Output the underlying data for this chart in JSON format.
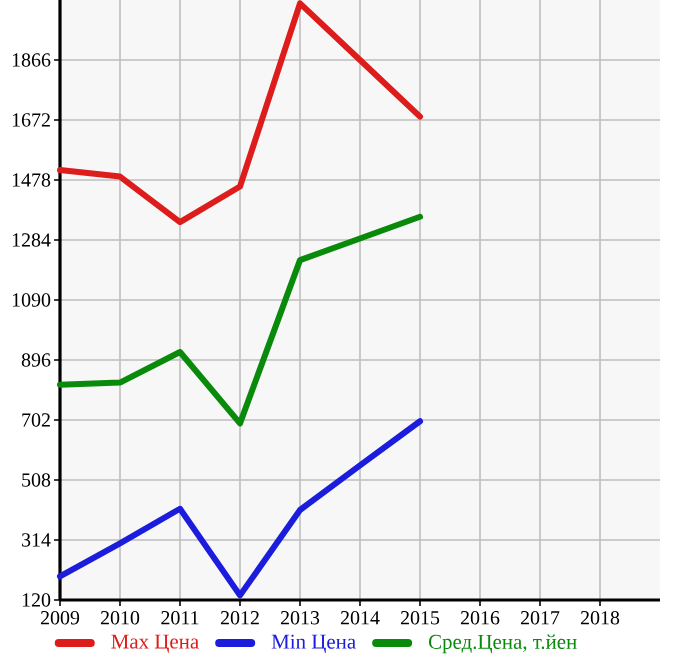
{
  "chart_data": {
    "type": "line",
    "x": [
      2009,
      2010,
      2011,
      2012,
      2013,
      2014,
      2015
    ],
    "series": [
      {
        "name": "Max Цена",
        "color": "#dd1c1c",
        "values": [
          1510,
          1489,
          1342,
          1457,
          2049,
          1866,
          1683
        ]
      },
      {
        "name": "Min Цена",
        "color": "#1c1cdd",
        "values": [
          196,
          303,
          415,
          135,
          411,
          555,
          698
        ]
      },
      {
        "name": "Сред.Цена, т.йен",
        "color": "#0a8a0a",
        "values": [
          816,
          823,
          922,
          691,
          1219,
          1289,
          1359
        ]
      }
    ],
    "xlim": [
      2009,
      2019
    ],
    "xticks": [
      2009,
      2010,
      2011,
      2012,
      2013,
      2014,
      2015,
      2016,
      2017,
      2018
    ],
    "ylim": [
      120,
      2060
    ],
    "yticks": [
      120,
      314,
      508,
      702,
      896,
      1090,
      1284,
      1478,
      1672,
      1866
    ],
    "grid": true,
    "legend": "bottom",
    "marker": "none",
    "line_style": "solid"
  }
}
